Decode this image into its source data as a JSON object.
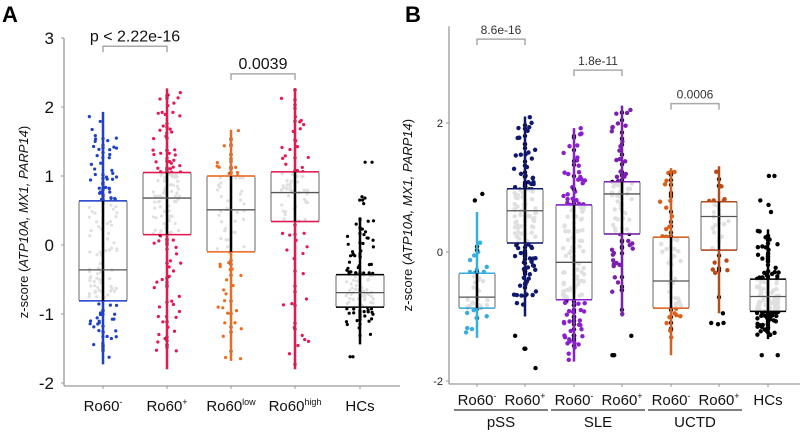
{
  "chart_data": [
    {
      "panel": "A",
      "type": "box",
      "title": "",
      "ylabel": "z-score (ATP10A, MX1, PARP14)",
      "ylabel_parts": [
        {
          "text": "z-score (",
          "italic": false
        },
        {
          "text": "ATP10A, MX1, PARP14",
          "italic": true
        },
        {
          "text": ")",
          "italic": false
        }
      ],
      "ylim": [
        -2,
        3
      ],
      "yticks": [
        -2,
        -1,
        0,
        1,
        2,
        3
      ],
      "grid": false,
      "categories": [
        {
          "base": "Ro60",
          "sup": "-"
        },
        {
          "base": "Ro60",
          "sup": "+"
        },
        {
          "base": "Ro60",
          "sup": "low"
        },
        {
          "base": "Ro60",
          "sup": "high"
        },
        {
          "base": "HCs",
          "sup": ""
        }
      ],
      "colors": [
        "#1f3fcf",
        "#e8174f",
        "#f06a1e",
        "#e8174f",
        "#000000"
      ],
      "boxes": [
        {
          "q1": -0.81,
          "median": -0.36,
          "q3": 0.64,
          "min": -1.73,
          "max": 1.93,
          "n": 190
        },
        {
          "q1": 0.15,
          "median": 0.68,
          "q3": 1.05,
          "min": -1.8,
          "max": 2.27,
          "n": 210
        },
        {
          "q1": -0.1,
          "median": 0.51,
          "q3": 1.0,
          "min": -1.68,
          "max": 1.67,
          "n": 100
        },
        {
          "q1": 0.34,
          "median": 0.76,
          "q3": 1.06,
          "min": -1.8,
          "max": 2.27,
          "n": 110
        },
        {
          "q1": -0.9,
          "median": -0.69,
          "q3": -0.43,
          "min": -1.44,
          "max": 0.38,
          "n": 150,
          "outliers": [
            1.2,
            1.2,
            0.65,
            0.65,
            0.6,
            0.68,
            0.7,
            -1.62,
            -1.62
          ]
        }
      ],
      "comparisons": [
        {
          "from": 0,
          "to": 1,
          "label": "p < 2.22e-16",
          "y": 2.88
        },
        {
          "from": 2,
          "to": 3,
          "label": "0.0039",
          "y": 2.48
        }
      ]
    },
    {
      "panel": "B",
      "type": "box",
      "title": "",
      "ylabel": "z-score (ATP10A, MX1, PARP14)",
      "ylabel_parts": [
        {
          "text": "z-score (",
          "italic": false
        },
        {
          "text": "ATP10A, MX1, PARP14",
          "italic": true
        },
        {
          "text": ")",
          "italic": false
        }
      ],
      "ylim": [
        -2,
        3.5
      ],
      "yticks": [
        -2,
        0,
        2
      ],
      "grid": false,
      "categories": [
        {
          "base": "Ro60",
          "sup": "-"
        },
        {
          "base": "Ro60",
          "sup": "+"
        },
        {
          "base": "Ro60",
          "sup": "-"
        },
        {
          "base": "Ro60",
          "sup": "+"
        },
        {
          "base": "Ro60",
          "sup": "-"
        },
        {
          "base": "Ro60",
          "sup": "+"
        },
        {
          "base": "HCs",
          "sup": ""
        }
      ],
      "groups": [
        {
          "label": "pSS",
          "from": 0,
          "to": 1
        },
        {
          "label": "SLE",
          "from": 2,
          "to": 3
        },
        {
          "label": "UCTD",
          "from": 4,
          "to": 5
        }
      ],
      "colors": [
        "#35aee0",
        "#10186e",
        "#8a1fd0",
        "#7a1fb0",
        "#d9601a",
        "#b84a1a",
        "#000000"
      ],
      "boxes": [
        {
          "q1": -0.87,
          "median": -0.7,
          "q3": -0.33,
          "min": -1.33,
          "max": 0.62,
          "n": 45,
          "outliers": [
            0.9,
            0.8
          ]
        },
        {
          "q1": 0.14,
          "median": 0.64,
          "q3": 0.98,
          "min": -1.0,
          "max": 2.1,
          "n": 170,
          "outliers": [
            -1.3,
            -1.5,
            -1.5,
            -1.8
          ]
        },
        {
          "q1": -0.74,
          "median": -0.16,
          "q3": 0.73,
          "min": -1.7,
          "max": 1.92,
          "n": 190
        },
        {
          "q1": 0.28,
          "median": 0.9,
          "q3": 1.09,
          "min": -1.0,
          "max": 2.27,
          "n": 110,
          "outliers": [
            -1.3,
            -1.6,
            -1.6
          ]
        },
        {
          "q1": -0.87,
          "median": -0.45,
          "q3": 0.23,
          "min": -1.6,
          "max": 1.3,
          "n": 80
        },
        {
          "q1": 0.03,
          "median": 0.55,
          "q3": 0.78,
          "min": -0.95,
          "max": 1.33,
          "n": 35,
          "outliers": [
            -1.1,
            -1.1,
            -1.12,
            -0.95
          ]
        },
        {
          "q1": -0.92,
          "median": -0.69,
          "q3": -0.42,
          "min": -1.35,
          "max": 0.35,
          "n": 190,
          "outliers": [
            1.18,
            1.18,
            0.73,
            0.8,
            0.62,
            -1.6,
            -1.6
          ]
        }
      ],
      "comparisons": [
        {
          "from": 0,
          "to": 1,
          "label": "8.6e-16",
          "y": 3.3
        },
        {
          "from": 2,
          "to": 3,
          "label": "1.8e-11",
          "y": 2.82
        },
        {
          "from": 4,
          "to": 5,
          "label": "0.0006",
          "y": 2.3
        }
      ]
    }
  ],
  "panel_letters": [
    "A",
    "B"
  ]
}
